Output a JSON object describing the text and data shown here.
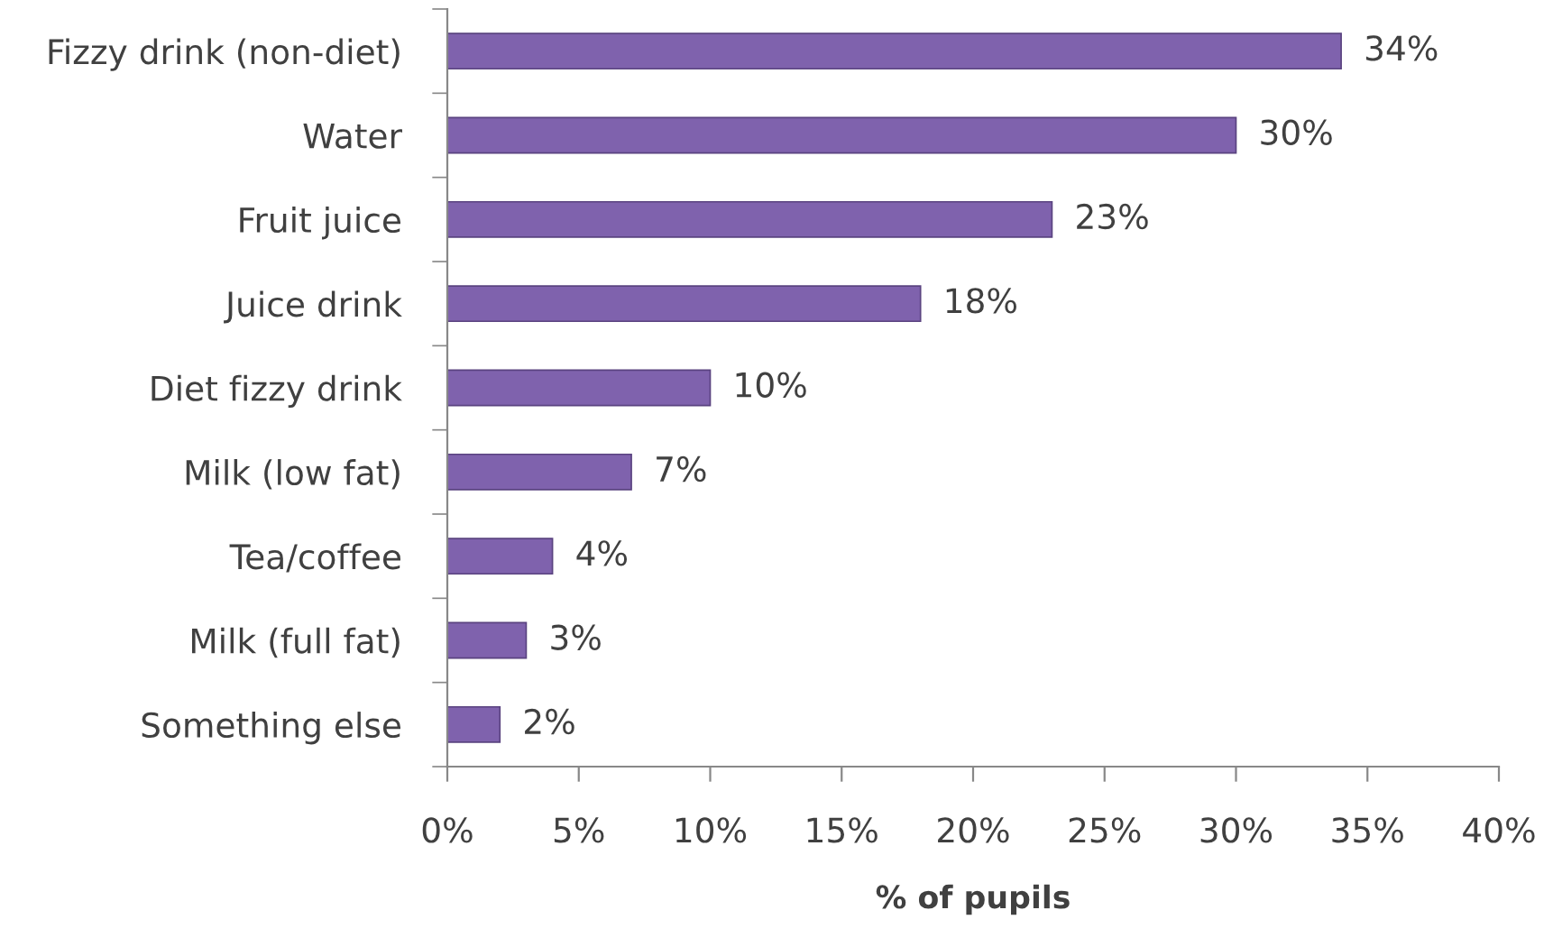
{
  "chart_data": {
    "type": "bar",
    "orientation": "horizontal",
    "xlabel": "% of pupils",
    "categories": [
      "Fizzy drink (non-diet)",
      "Water",
      "Fruit juice",
      "Juice drink",
      "Diet fizzy drink",
      "Milk (low fat)",
      "Tea/coffee",
      "Milk (full fat)",
      "Something else"
    ],
    "values": [
      34,
      30,
      23,
      18,
      10,
      7,
      4,
      3,
      2
    ],
    "value_labels": [
      "34%",
      "30%",
      "23%",
      "18%",
      "10%",
      "7%",
      "4%",
      "3%",
      "2%"
    ],
    "color": "#7f62ad",
    "xlim": [
      0,
      40
    ],
    "xticks": [
      {
        "value": 0,
        "label": "0%"
      },
      {
        "value": 5,
        "label": "5%"
      },
      {
        "value": 10,
        "label": "10%"
      },
      {
        "value": 15,
        "label": "15%"
      },
      {
        "value": 20,
        "label": "20%"
      },
      {
        "value": 25,
        "label": "25%"
      },
      {
        "value": 30,
        "label": "30%"
      },
      {
        "value": 35,
        "label": "35%"
      },
      {
        "value": 40,
        "label": "40%"
      }
    ],
    "grid": false,
    "legend": false
  }
}
